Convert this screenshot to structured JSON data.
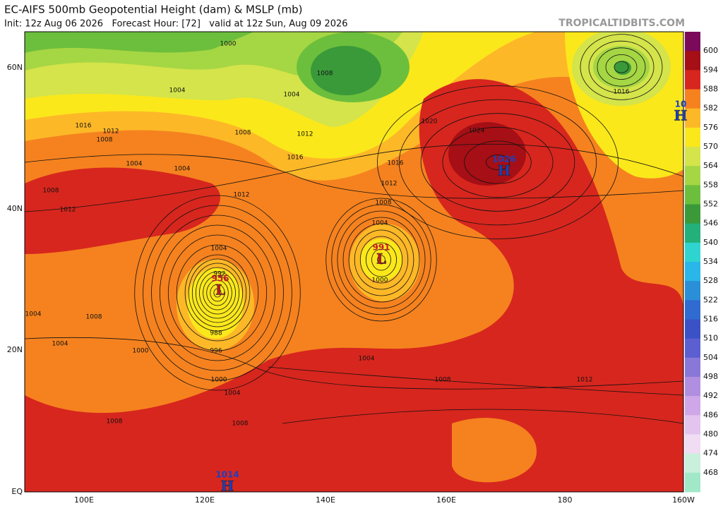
{
  "header": {
    "title": "EC-AIFS 500mb Geopotential Height (dam) & MSLP (mb)",
    "subtitle": "Init: 12z Aug 06 2026   Forecast Hour: [72]   valid at 12z Sun, Aug 09 2026",
    "site": "TROPICALTIDBITS.COM"
  },
  "lat_labels": [
    "60N",
    "40N",
    "20N",
    "EQ"
  ],
  "lon_labels": [
    "100E",
    "120E",
    "140E",
    "160E",
    "180",
    "160W"
  ],
  "colorbar": {
    "labels": [
      600,
      594,
      588,
      582,
      576,
      570,
      564,
      558,
      552,
      546,
      540,
      534,
      528,
      522,
      516,
      510,
      504,
      498,
      492,
      486,
      480,
      474,
      468
    ],
    "colors": [
      "#7c0a5a",
      "#a50f15",
      "#d7261e",
      "#f5821f",
      "#fdb827",
      "#fbe81b",
      "#d4e44a",
      "#a5d644",
      "#6cbf3c",
      "#3a9a3a",
      "#23b07a",
      "#2fd4d0",
      "#29b6e8",
      "#2a8fd6",
      "#2f6bd0",
      "#3a52c6",
      "#5c5fd0",
      "#8a78d8",
      "#b08ee0",
      "#cfa7e8",
      "#e2c4ee",
      "#f0dcf3",
      "#c8f0dc",
      "#a0e8c8"
    ]
  },
  "centers": [
    {
      "symbol": "L",
      "value": "956"
    },
    {
      "symbol": "L",
      "value": "991"
    },
    {
      "symbol": "H",
      "value": "1026"
    },
    {
      "symbol": "H",
      "value": "1014"
    },
    {
      "symbol": "H",
      "value": "10"
    }
  ],
  "isobar_labels": [
    "1000",
    "1008",
    "1004",
    "1004",
    "1016",
    "1012",
    "1008",
    "1008",
    "1012",
    "1016",
    "1020",
    "1024",
    "1016",
    "1012",
    "1008",
    "1004",
    "1000",
    "1004",
    "992",
    "988",
    "996",
    "1000",
    "1004",
    "1008",
    "1004",
    "1008",
    "1012",
    "1016",
    "1004",
    "1000",
    "1004",
    "1008",
    "1004",
    "1012",
    "1008",
    "1012",
    "1004",
    "1008"
  ]
}
